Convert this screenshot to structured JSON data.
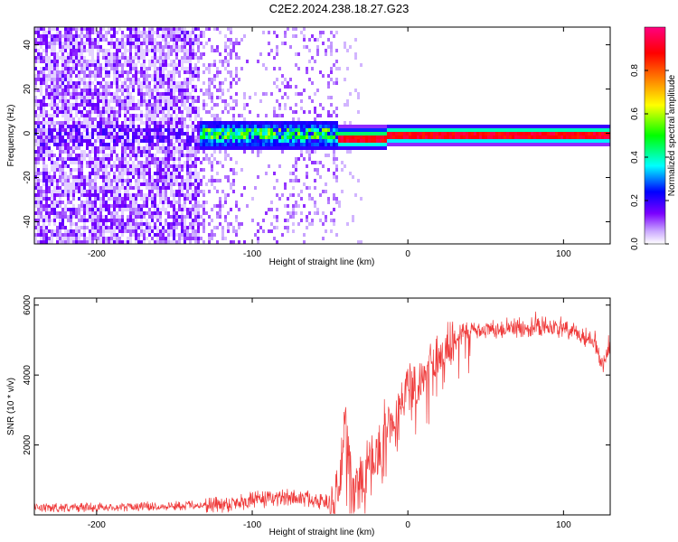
{
  "title": "C2E2.2024.238.18.27.G23",
  "chart_data": [
    {
      "type": "heatmap",
      "xlabel": "Height of straight line (km)",
      "ylabel": "Frequency (Hz)",
      "xlim": [
        -240,
        130
      ],
      "ylim": [
        -50,
        48
      ],
      "x_ticks": [
        -200,
        -100,
        0,
        100
      ],
      "y_ticks": [
        -40,
        -20,
        0,
        20,
        40
      ],
      "colorbar": {
        "label": "Normalized spectral amplitude",
        "range": [
          0.0,
          1.0
        ],
        "ticks": [
          "0.0",
          "0.2",
          "0.4",
          "0.6",
          "0.8"
        ],
        "colormap": [
          "#ffffff",
          "#7b00ff",
          "#0000ff",
          "#00ffff",
          "#00ff00",
          "#ffff00",
          "#ff8000",
          "#ff0000",
          "#ff0080"
        ]
      },
      "regions": [
        {
          "x_from": -240,
          "x_to": -135,
          "description": "noise",
          "level": 0.05
        },
        {
          "x_from": -135,
          "x_to": -45,
          "center_freq": 0,
          "level": 0.35
        },
        {
          "x_from": -45,
          "x_to": 130,
          "center_freq": 0,
          "level": 0.95
        }
      ]
    },
    {
      "type": "line",
      "xlabel": "Height of straight line (km)",
      "ylabel": "SNR (10 * v/v)",
      "xlim": [
        -240,
        130
      ],
      "ylim": [
        0,
        6200
      ],
      "x_ticks": [
        -200,
        -100,
        0,
        100
      ],
      "y_ticks": [
        2000,
        4000,
        6000
      ],
      "color": "#ef3a3a",
      "series": [
        {
          "x": [
            -240,
            -200,
            -150,
            -120,
            -100,
            -80,
            -60,
            -50,
            -45,
            -40,
            -35,
            -30,
            -25,
            -20,
            -15,
            -10,
            -5,
            0,
            5,
            10,
            15,
            20,
            25,
            30,
            40,
            50,
            60,
            70,
            80,
            90,
            100,
            110,
            120,
            125,
            130
          ],
          "y": [
            200,
            220,
            260,
            300,
            420,
            500,
            450,
            300,
            450,
            2600,
            400,
            1100,
            1300,
            1500,
            2500,
            2800,
            3000,
            4000,
            3500,
            3900,
            4400,
            4600,
            4800,
            5100,
            5250,
            5300,
            5350,
            5350,
            5400,
            5400,
            5300,
            5150,
            5000,
            4300,
            4850
          ]
        }
      ]
    }
  ]
}
